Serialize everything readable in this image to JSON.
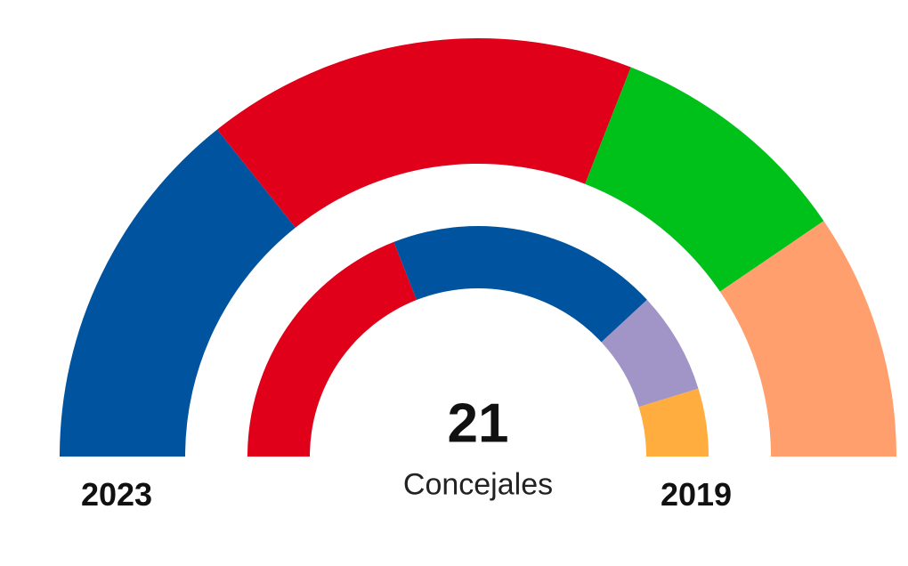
{
  "chart_data": {
    "type": "pie",
    "variant": "double-half-donut",
    "center_value": "21",
    "center_label": "Concejales",
    "rings": [
      {
        "name": "2023",
        "label": "2023",
        "position": "outer",
        "slices": [
          {
            "value": 6,
            "color": "#00539f"
          },
          {
            "value": 7,
            "color": "#e0001a"
          },
          {
            "value": 4,
            "color": "#00c11a"
          },
          {
            "value": 4,
            "color": "#ff9f6d"
          }
        ]
      },
      {
        "name": "2019",
        "label": "2019",
        "position": "inner",
        "slices": [
          {
            "value": 8,
            "color": "#e0001a"
          },
          {
            "value": 8,
            "color": "#00539f"
          },
          {
            "value": 3,
            "color": "#a194c7"
          },
          {
            "value": 2,
            "color": "#ffad3e"
          }
        ]
      }
    ]
  }
}
